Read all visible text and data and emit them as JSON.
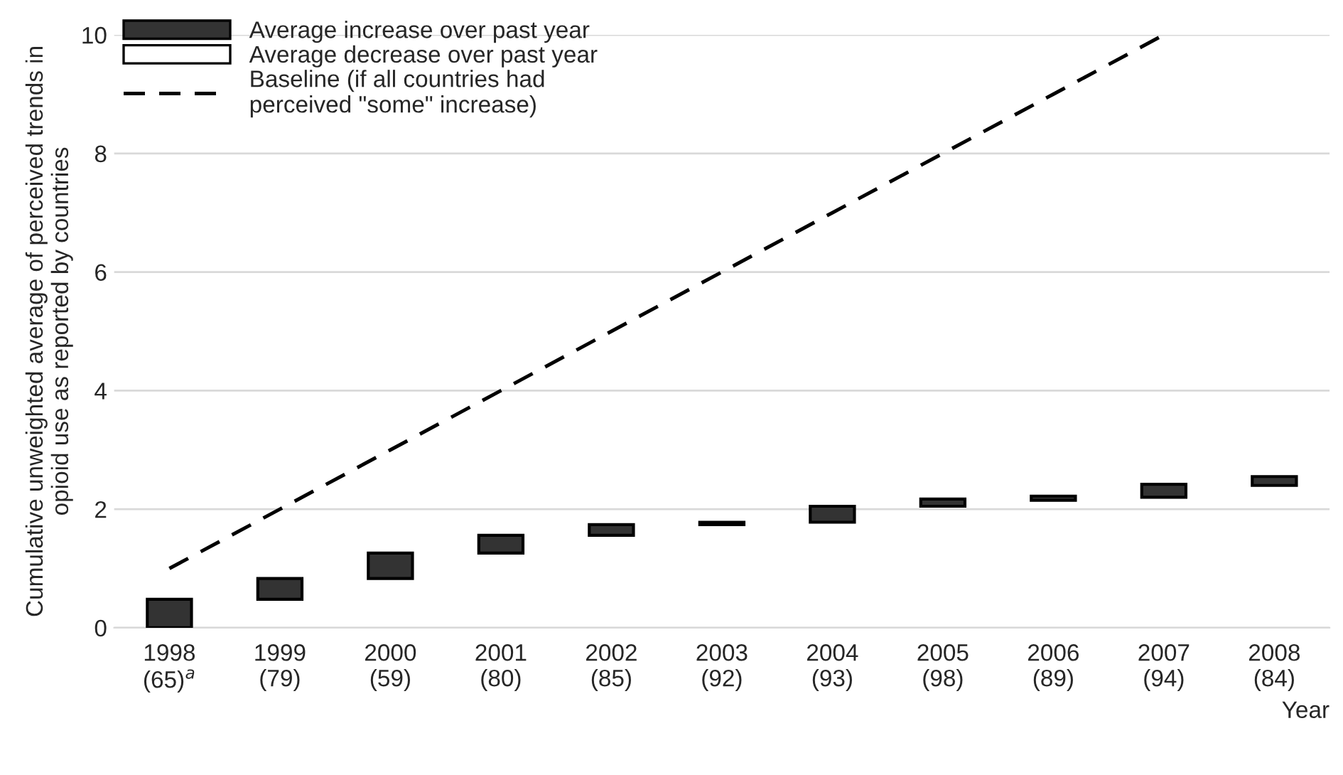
{
  "chart_data": {
    "type": "bar",
    "categories": [
      "1998\n(65)$^{a}$",
      "1999\n(79)",
      "2000\n(59)",
      "2001\n(80)",
      "2002\n(85)",
      "2003\n(92)",
      "2004\n(93)",
      "2005\n(98)",
      "2006\n(89)",
      "2007\n(94)",
      "2008\n(84)"
    ],
    "series": [
      {
        "name": "Average increase over past year",
        "color": "#333333",
        "base": [
          0,
          0.48,
          0.83,
          1.26,
          1.56,
          1.74,
          1.78,
          2.05,
          2.15,
          2.2,
          2.4
        ],
        "values": [
          0.48,
          0.35,
          0.43,
          0.3,
          0.18,
          0.04,
          0.27,
          0.12,
          0.07,
          0.22,
          0.15
        ]
      },
      {
        "name": "Average decrease over past year",
        "color": "#ffffff",
        "base": [
          null,
          null,
          null,
          null,
          null,
          null,
          null,
          null,
          null,
          null,
          null
        ],
        "values": [
          null,
          null,
          null,
          null,
          null,
          null,
          null,
          null,
          null,
          null,
          null
        ]
      },
      {
        "name": "Baseline (if all countries had\nperceived \"some\" increase)",
        "type": "line",
        "color": "#000000",
        "line_style": "dashed",
        "values": [
          1,
          2,
          3,
          4,
          5,
          6,
          7,
          8,
          9,
          10,
          null
        ]
      }
    ],
    "xlabel": "Year",
    "ylabel": "Cumulative unweighted average of perceived trends in\nopioid use as reported by countries",
    "ylim": [
      0,
      10
    ],
    "yticks": [
      0,
      2,
      4,
      6,
      8,
      10
    ],
    "grid": "y",
    "legend": "top left"
  }
}
